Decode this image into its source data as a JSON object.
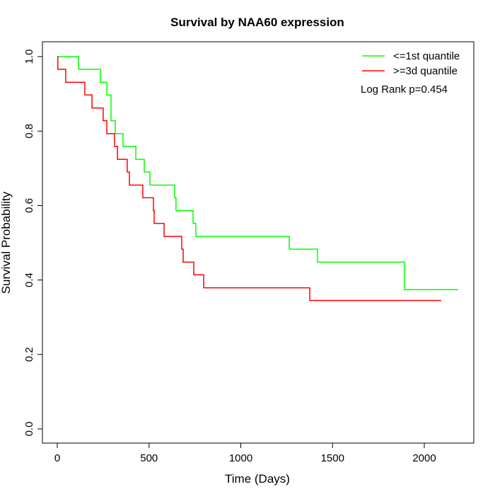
{
  "chart_data": {
    "type": "line",
    "step": true,
    "title": "Survival by NAA60 expression",
    "xlabel": "Time (Days)",
    "ylabel": "Survival Probability",
    "xlim": [
      0,
      2200
    ],
    "ylim": [
      0,
      1
    ],
    "xticks": [
      0,
      500,
      1000,
      1500,
      2000
    ],
    "xtick_labels": [
      "0",
      "500",
      "1000",
      "1500",
      "2000"
    ],
    "yticks": [
      0,
      0.2,
      0.4,
      0.6,
      0.8,
      1.0
    ],
    "ytick_labels": [
      "0.0",
      "0.2",
      "0.4",
      "0.6",
      "0.8",
      "1.0"
    ],
    "grid": false,
    "legend_position": "top-right",
    "annotation": "Log Rank p=0.454",
    "series": [
      {
        "name": "<=1st quantile",
        "color": "#00ff00",
        "x": [
          0,
          116,
          235,
          270,
          293,
          316,
          358,
          428,
          474,
          505,
          640,
          647,
          740,
          755,
          1264,
          1418,
          1892,
          2185
        ],
        "y": [
          1.0,
          0.966,
          0.931,
          0.897,
          0.828,
          0.793,
          0.759,
          0.724,
          0.69,
          0.655,
          0.621,
          0.586,
          0.552,
          0.517,
          0.483,
          0.448,
          0.374,
          0.374
        ]
      },
      {
        "name": ">=3d quantile",
        "color": "#ff0000",
        "x": [
          0,
          3,
          46,
          150,
          189,
          250,
          270,
          312,
          328,
          381,
          393,
          466,
          524,
          528,
          582,
          678,
          686,
          744,
          798,
          1376,
          2092
        ],
        "y": [
          1.0,
          0.966,
          0.931,
          0.897,
          0.862,
          0.828,
          0.793,
          0.759,
          0.724,
          0.69,
          0.655,
          0.621,
          0.586,
          0.552,
          0.517,
          0.483,
          0.448,
          0.414,
          0.379,
          0.345,
          0.345
        ]
      }
    ]
  }
}
